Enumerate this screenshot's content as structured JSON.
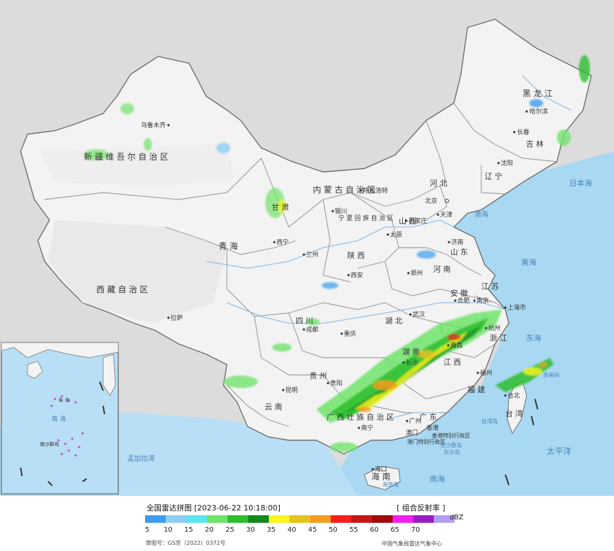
{
  "legend": {
    "title": "全国雷达拼图 [2023-06-22 10:18:00]",
    "product": "[ 组合反射率 ]",
    "unit": "dBZ",
    "labels": [
      "5",
      "10",
      "15",
      "20",
      "25",
      "30",
      "35",
      "40",
      "45",
      "50",
      "55",
      "60",
      "65",
      "70"
    ],
    "colors": [
      "#3d9cf0",
      "#8fcdf4",
      "#5ae6f0",
      "#6fe36a",
      "#2dbe2d",
      "#13891e",
      "#fbf61e",
      "#e6c31d",
      "#f79b1e",
      "#f81e1e",
      "#c81717",
      "#a40a0a",
      "#f21ef2",
      "#9a1ec6",
      "#b49df0"
    ]
  },
  "footer": {
    "approval": "审图号：GS京（2022）0372号",
    "credit": "中国气象局雷达气象中心"
  },
  "regions": {
    "heilongjiang": "黑 龙 江",
    "jilin": "吉 林",
    "liaoning": "辽 宁",
    "neimenggu": "内 蒙 古 自 治 区",
    "hebei": "河 北",
    "shanxi": "山 西",
    "shaanxi": "陕 西",
    "henan": "河 南",
    "shandong": "山 东",
    "jiangsu": "江 苏",
    "anhui": "安 徽",
    "zhejiang": "浙 江",
    "jiangxi": "江 西",
    "fujian": "福 建",
    "hunan": "湖 南",
    "hubei": "湖 北",
    "guangdong": "广 东",
    "guangxi": "广 西 壮 族 自 治 区",
    "hainan": "海 南",
    "yunnan": "云 南",
    "guizhou": "贵 州",
    "sichuan": "四 川",
    "chongqing": "重 庆",
    "gansu": "甘 肃",
    "ningxia": "宁 夏 回 族 自 治 区",
    "qinghai": "青 海",
    "xinjiang": "新 疆 维 吾 尔 自 治 区",
    "xizang": "西 藏 自 治 区",
    "taiwan": "台 湾",
    "hongkong": "香港特别行政区",
    "macau": "澳门特别行政区"
  },
  "cities": {
    "harbin": "哈尔滨",
    "changchun": "长春",
    "shenyang": "沈阳",
    "hohhot": "呼和浩特",
    "beijing": "北京",
    "tianjin": "天津",
    "shijiazhuang": "石家庄",
    "taiyuan": "太原",
    "jinan": "济南",
    "zhengzhou": "郑州",
    "xian": "西安",
    "lanzhou": "兰州",
    "xining": "西宁",
    "yinchuan": "银川",
    "urumqi": "乌鲁木齐",
    "lhasa": "拉萨",
    "chengdu": "成都",
    "chongqing": "重庆",
    "guiyang": "贵阳",
    "kunming": "昆明",
    "nanning": "南宁",
    "guangzhou": "广州",
    "haikou": "海口",
    "changsha": "长沙",
    "wuhan": "武汉",
    "nanchang": "南昌",
    "hefei": "合肥",
    "nanjing": "南京",
    "shanghai": "上海市",
    "hangzhou": "杭州",
    "fuzhou": "福州",
    "taibei": "台北",
    "hongkong": "香港",
    "macau": "澳门"
  },
  "seas": {
    "bohai": "渤海",
    "huanghai": "黄海",
    "donghai": "东海",
    "nanhai": "南海",
    "riben": "日本海",
    "taiping": "太平洋",
    "mengjiala": "孟加拉湾",
    "taiwan_strait": "台湾岛",
    "chiwei": "赤尾屿",
    "dongsha": "东沙群岛",
    "dongsha_dao": "东沙岛",
    "hainan_dao": "海南岛"
  },
  "inset": {
    "nanhai": "南 海",
    "zhuzhou": "朱 岛",
    "nansha": "南沙群岛"
  }
}
